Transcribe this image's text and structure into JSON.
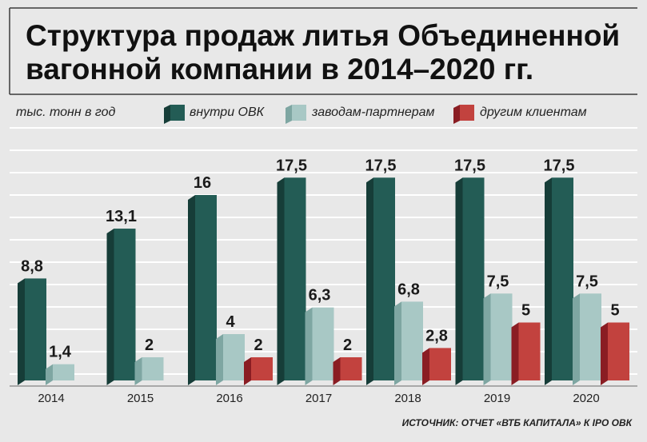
{
  "chart_data": {
    "type": "bar",
    "title_lines": [
      "Структура продаж литья Объединенной",
      "вагонной компании в 2014–2020 гг."
    ],
    "unit": "тыс. тонн в год",
    "categories": [
      "2014",
      "2015",
      "2016",
      "2017",
      "2018",
      "2019",
      "2020"
    ],
    "series": [
      {
        "name": "внутри ОВК",
        "values": [
          8.8,
          13.1,
          16,
          17.5,
          17.5,
          17.5,
          17.5
        ],
        "labels": [
          "8,8",
          "13,1",
          "16",
          "17,5",
          "17,5",
          "17,5",
          "17,5"
        ],
        "color": "#235c55",
        "side_color": "#163d38"
      },
      {
        "name": "заводам-партнерам",
        "values": [
          1.4,
          2,
          4,
          6.3,
          6.8,
          7.5,
          7.5
        ],
        "labels": [
          "1,4",
          "2",
          "4",
          "6,3",
          "6,8",
          "7,5",
          "7,5"
        ],
        "color": "#a8c8c5",
        "side_color": "#7ea6a2"
      },
      {
        "name": "другим клиентам",
        "values": [
          null,
          null,
          2,
          2,
          2.8,
          5,
          5
        ],
        "labels": [
          null,
          null,
          "2",
          "2",
          "2,8",
          "5",
          "5"
        ],
        "color": "#c2423e",
        "side_color": "#8a1d23"
      }
    ],
    "ylim": [
      0,
      22
    ],
    "grid": true,
    "legend_position": "top",
    "source": "ИСТОЧНИК: ОТЧЕТ «ВТБ КАПИТАЛА» К IPO ОВК"
  }
}
